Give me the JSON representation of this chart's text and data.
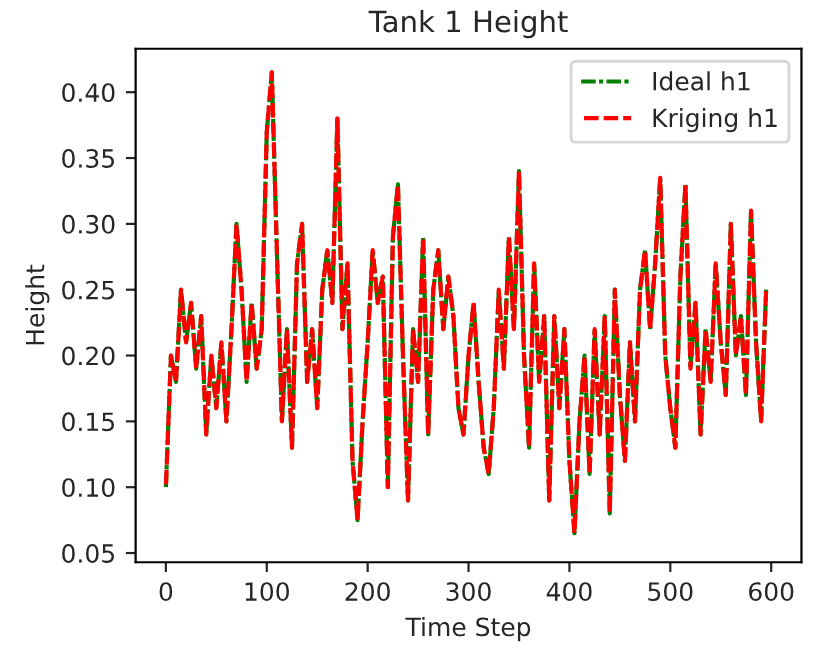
{
  "chart_data": {
    "type": "line",
    "title": "Tank 1 Height",
    "xlabel": "Time Step",
    "ylabel": "Height",
    "x": [
      0,
      5,
      10,
      15,
      20,
      25,
      30,
      35,
      40,
      45,
      50,
      55,
      60,
      65,
      70,
      75,
      80,
      85,
      90,
      95,
      100,
      105,
      110,
      115,
      120,
      125,
      130,
      135,
      140,
      145,
      150,
      155,
      160,
      165,
      170,
      175,
      180,
      185,
      190,
      195,
      200,
      205,
      210,
      215,
      220,
      225,
      230,
      235,
      240,
      245,
      250,
      255,
      260,
      265,
      270,
      275,
      280,
      285,
      290,
      295,
      300,
      305,
      310,
      315,
      320,
      325,
      330,
      335,
      340,
      345,
      350,
      355,
      360,
      365,
      370,
      375,
      380,
      385,
      390,
      395,
      400,
      405,
      410,
      415,
      420,
      425,
      430,
      435,
      440,
      445,
      450,
      455,
      460,
      465,
      470,
      475,
      480,
      485,
      490,
      495,
      500,
      505,
      510,
      515,
      520,
      525,
      530,
      535,
      540,
      545,
      550,
      555,
      560,
      565,
      570,
      575,
      580,
      585,
      590,
      595
    ],
    "series": [
      {
        "name": "Ideal h1",
        "color": "#008000",
        "line_style": "dashdot",
        "values": [
          0.1,
          0.2,
          0.18,
          0.25,
          0.21,
          0.24,
          0.19,
          0.23,
          0.14,
          0.2,
          0.16,
          0.21,
          0.15,
          0.22,
          0.3,
          0.25,
          0.18,
          0.24,
          0.19,
          0.22,
          0.37,
          0.415,
          0.28,
          0.15,
          0.22,
          0.13,
          0.27,
          0.3,
          0.18,
          0.22,
          0.16,
          0.25,
          0.28,
          0.24,
          0.38,
          0.22,
          0.27,
          0.12,
          0.075,
          0.15,
          0.21,
          0.28,
          0.24,
          0.26,
          0.1,
          0.29,
          0.33,
          0.2,
          0.09,
          0.22,
          0.18,
          0.29,
          0.14,
          0.25,
          0.28,
          0.22,
          0.26,
          0.23,
          0.16,
          0.14,
          0.2,
          0.24,
          0.18,
          0.13,
          0.11,
          0.16,
          0.25,
          0.19,
          0.29,
          0.22,
          0.34,
          0.2,
          0.13,
          0.27,
          0.18,
          0.23,
          0.09,
          0.23,
          0.16,
          0.22,
          0.12,
          0.065,
          0.15,
          0.2,
          0.11,
          0.22,
          0.14,
          0.23,
          0.08,
          0.25,
          0.17,
          0.12,
          0.21,
          0.15,
          0.25,
          0.28,
          0.22,
          0.27,
          0.335,
          0.2,
          0.16,
          0.13,
          0.26,
          0.33,
          0.19,
          0.24,
          0.14,
          0.22,
          0.18,
          0.27,
          0.21,
          0.17,
          0.3,
          0.2,
          0.23,
          0.17,
          0.31,
          0.21,
          0.15,
          0.25
        ]
      },
      {
        "name": "Kriging h1",
        "color": "#ff0000",
        "line_style": "dashed",
        "values": [
          0.1,
          0.2,
          0.18,
          0.25,
          0.21,
          0.24,
          0.19,
          0.23,
          0.14,
          0.2,
          0.16,
          0.21,
          0.15,
          0.22,
          0.3,
          0.25,
          0.18,
          0.24,
          0.19,
          0.22,
          0.37,
          0.415,
          0.28,
          0.15,
          0.22,
          0.13,
          0.27,
          0.3,
          0.18,
          0.22,
          0.16,
          0.25,
          0.28,
          0.24,
          0.38,
          0.22,
          0.27,
          0.12,
          0.075,
          0.15,
          0.21,
          0.28,
          0.24,
          0.26,
          0.1,
          0.29,
          0.33,
          0.2,
          0.09,
          0.22,
          0.18,
          0.29,
          0.14,
          0.25,
          0.28,
          0.22,
          0.26,
          0.23,
          0.16,
          0.14,
          0.2,
          0.24,
          0.18,
          0.13,
          0.11,
          0.16,
          0.25,
          0.19,
          0.29,
          0.22,
          0.34,
          0.2,
          0.13,
          0.27,
          0.18,
          0.23,
          0.09,
          0.23,
          0.16,
          0.22,
          0.12,
          0.065,
          0.15,
          0.2,
          0.11,
          0.22,
          0.14,
          0.23,
          0.08,
          0.25,
          0.17,
          0.12,
          0.21,
          0.15,
          0.25,
          0.28,
          0.22,
          0.27,
          0.335,
          0.2,
          0.16,
          0.13,
          0.26,
          0.33,
          0.19,
          0.24,
          0.14,
          0.22,
          0.18,
          0.27,
          0.21,
          0.17,
          0.3,
          0.2,
          0.23,
          0.17,
          0.31,
          0.21,
          0.15,
          0.25
        ]
      }
    ],
    "xlim": [
      -30,
      630
    ],
    "ylim": [
      0.043,
      0.433
    ],
    "xticks": [
      0,
      100,
      200,
      300,
      400,
      500,
      600
    ],
    "yticks": [
      {
        "value": 0.05,
        "label": "0.05"
      },
      {
        "value": 0.1,
        "label": "0.10"
      },
      {
        "value": 0.15,
        "label": "0.15"
      },
      {
        "value": 0.2,
        "label": "0.20"
      },
      {
        "value": 0.25,
        "label": "0.25"
      },
      {
        "value": 0.3,
        "label": "0.30"
      },
      {
        "value": 0.35,
        "label": "0.35"
      },
      {
        "value": 0.4,
        "label": "0.40"
      }
    ],
    "legend": "top right",
    "grid": false
  }
}
